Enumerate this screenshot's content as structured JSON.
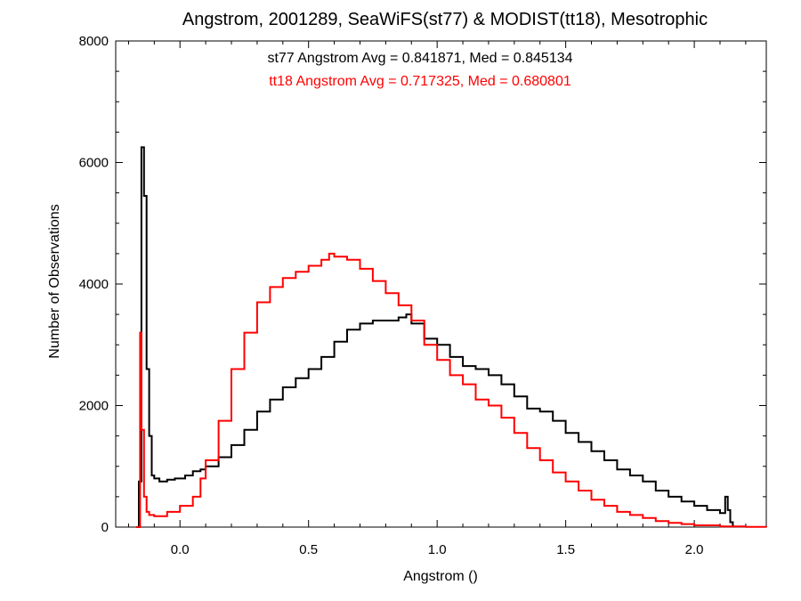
{
  "chart_data": {
    "type": "line",
    "title": "Angstrom, 2001289, SeaWiFS(st77) & MODIST(tt18), Mesotrophic",
    "xlabel": "Angstrom ()",
    "ylabel": "Number of Observations",
    "xlim": [
      -0.25,
      2.28
    ],
    "ylim": [
      0,
      8000
    ],
    "x_ticks": [
      0.0,
      0.5,
      1.0,
      1.5,
      2.0
    ],
    "x_tick_labels": [
      "0.0",
      "0.5",
      "1.0",
      "1.5",
      "2.0"
    ],
    "y_ticks": [
      0,
      2000,
      4000,
      6000,
      8000
    ],
    "y_tick_labels": [
      "0",
      "2000",
      "4000",
      "6000",
      "8000"
    ],
    "grid": false,
    "annotations": [
      {
        "text": "st77 Angstrom Avg = 0.841871, Med = 0.845134",
        "color": "#000000"
      },
      {
        "text": "tt18 Angstrom Avg = 0.717325, Med = 0.680801",
        "color": "#ff0000"
      }
    ],
    "series": [
      {
        "color": "#000000",
        "x": [
          -0.17,
          -0.16,
          -0.15,
          -0.14,
          -0.13,
          -0.12,
          -0.11,
          -0.1,
          -0.08,
          -0.05,
          -0.02,
          0,
          0.02,
          0.05,
          0.08,
          0.1,
          0.15,
          0.2,
          0.25,
          0.3,
          0.35,
          0.4,
          0.45,
          0.5,
          0.55,
          0.6,
          0.65,
          0.7,
          0.75,
          0.8,
          0.85,
          0.88,
          0.9,
          0.95,
          1.0,
          1.05,
          1.1,
          1.15,
          1.2,
          1.25,
          1.3,
          1.35,
          1.4,
          1.45,
          1.5,
          1.55,
          1.6,
          1.65,
          1.7,
          1.75,
          1.8,
          1.85,
          1.9,
          1.95,
          2.0,
          2.05,
          2.1,
          2.12,
          2.13,
          2.14,
          2.15
        ],
        "y": [
          0,
          750,
          6250,
          5450,
          2600,
          1500,
          850,
          800,
          750,
          780,
          800,
          800,
          850,
          920,
          950,
          1000,
          1150,
          1350,
          1600,
          1900,
          2100,
          2300,
          2450,
          2600,
          2800,
          3050,
          3250,
          3350,
          3400,
          3400,
          3450,
          3500,
          3350,
          3100,
          3000,
          2800,
          2650,
          2600,
          2500,
          2350,
          2150,
          1950,
          1900,
          1750,
          1550,
          1400,
          1250,
          1100,
          950,
          850,
          750,
          600,
          500,
          420,
          350,
          280,
          230,
          500,
          280,
          80,
          0
        ]
      },
      {
        "color": "#ff0000",
        "x": [
          -0.17,
          -0.16,
          -0.155,
          -0.15,
          -0.14,
          -0.13,
          -0.12,
          -0.1,
          -0.05,
          0,
          0.05,
          0.08,
          0.1,
          0.15,
          0.2,
          0.25,
          0.3,
          0.35,
          0.4,
          0.45,
          0.5,
          0.55,
          0.58,
          0.6,
          0.65,
          0.7,
          0.75,
          0.8,
          0.85,
          0.9,
          0.95,
          1.0,
          1.05,
          1.1,
          1.15,
          1.2,
          1.25,
          1.3,
          1.35,
          1.4,
          1.45,
          1.5,
          1.55,
          1.6,
          1.65,
          1.7,
          1.75,
          1.8,
          1.85,
          1.9,
          1.95,
          2.0,
          2.1,
          2.2,
          2.28
        ],
        "y": [
          0,
          0,
          3200,
          1600,
          500,
          250,
          200,
          180,
          250,
          350,
          500,
          800,
          1100,
          1750,
          2600,
          3200,
          3700,
          3950,
          4100,
          4200,
          4300,
          4400,
          4500,
          4450,
          4400,
          4250,
          4050,
          3850,
          3650,
          3400,
          3000,
          2750,
          2500,
          2350,
          2100,
          2000,
          1800,
          1550,
          1300,
          1100,
          900,
          750,
          600,
          450,
          350,
          250,
          200,
          150,
          100,
          70,
          50,
          30,
          10,
          5,
          0
        ]
      }
    ]
  }
}
